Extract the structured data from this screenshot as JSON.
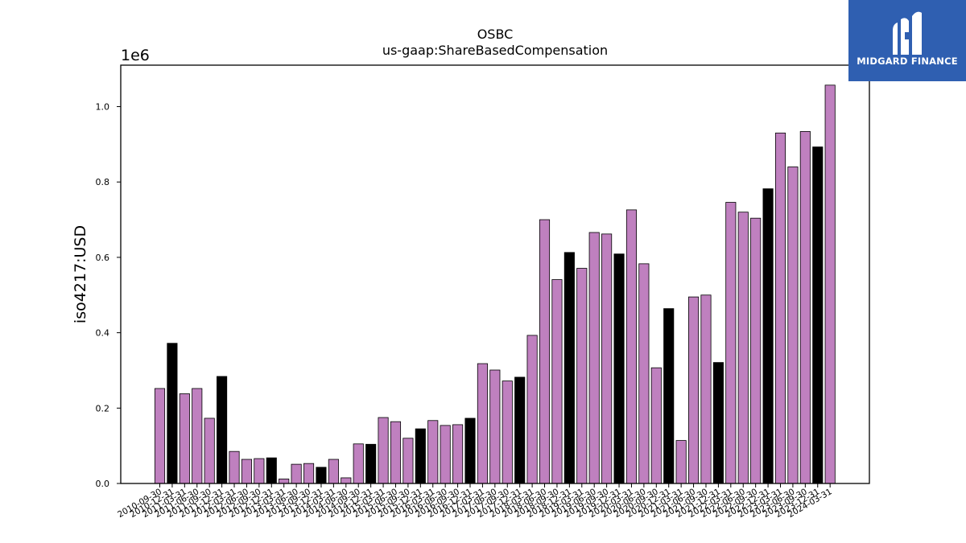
{
  "chart_data": {
    "type": "bar",
    "title": "OSBC",
    "subtitle": "us-gaap:ShareBasedCompensation",
    "ylabel": "iso4217:USD",
    "xlabel": "",
    "y_scale_label": "1e6",
    "y_scale": 1000000,
    "ylim": [
      0,
      1110000
    ],
    "yticks": [
      0,
      200000,
      400000,
      600000,
      800000,
      1000000
    ],
    "ytick_labels": [
      "0.0",
      "0.2",
      "0.4",
      "0.6",
      "0.8",
      "1.0"
    ],
    "grid": false,
    "colors": {
      "quarter": "#bf80bf",
      "annual": "#000000",
      "edge": "#000000"
    },
    "series": [
      {
        "name": "",
        "points": [
          {
            "x": "2010-09-30",
            "y": 252000,
            "kind": "quarter"
          },
          {
            "x": "2010-12-31",
            "y": 372000,
            "kind": "annual"
          },
          {
            "x": "2011-03-31",
            "y": 238000,
            "kind": "quarter"
          },
          {
            "x": "2011-06-30",
            "y": 252000,
            "kind": "quarter"
          },
          {
            "x": "2011-09-30",
            "y": 173000,
            "kind": "quarter"
          },
          {
            "x": "2011-12-31",
            "y": 284000,
            "kind": "annual"
          },
          {
            "x": "2012-03-31",
            "y": 85000,
            "kind": "quarter"
          },
          {
            "x": "2012-06-30",
            "y": 64000,
            "kind": "quarter"
          },
          {
            "x": "2012-09-30",
            "y": 66000,
            "kind": "quarter"
          },
          {
            "x": "2012-12-31",
            "y": 68000,
            "kind": "annual"
          },
          {
            "x": "2013-03-31",
            "y": 12000,
            "kind": "quarter"
          },
          {
            "x": "2013-06-30",
            "y": 51000,
            "kind": "quarter"
          },
          {
            "x": "2013-09-30",
            "y": 53000,
            "kind": "quarter"
          },
          {
            "x": "2013-12-31",
            "y": 43000,
            "kind": "annual"
          },
          {
            "x": "2014-03-31",
            "y": 64000,
            "kind": "quarter"
          },
          {
            "x": "2014-06-30",
            "y": 15000,
            "kind": "quarter"
          },
          {
            "x": "2014-09-30",
            "y": 105000,
            "kind": "quarter"
          },
          {
            "x": "2014-12-31",
            "y": 104000,
            "kind": "annual"
          },
          {
            "x": "2015-03-31",
            "y": 175000,
            "kind": "quarter"
          },
          {
            "x": "2015-06-30",
            "y": 164000,
            "kind": "quarter"
          },
          {
            "x": "2015-09-30",
            "y": 120000,
            "kind": "quarter"
          },
          {
            "x": "2015-12-31",
            "y": 145000,
            "kind": "annual"
          },
          {
            "x": "2016-03-31",
            "y": 167000,
            "kind": "quarter"
          },
          {
            "x": "2016-06-30",
            "y": 154000,
            "kind": "quarter"
          },
          {
            "x": "2016-09-30",
            "y": 156000,
            "kind": "quarter"
          },
          {
            "x": "2016-12-31",
            "y": 173000,
            "kind": "annual"
          },
          {
            "x": "2017-03-31",
            "y": 318000,
            "kind": "quarter"
          },
          {
            "x": "2017-06-30",
            "y": 301000,
            "kind": "quarter"
          },
          {
            "x": "2017-09-30",
            "y": 272000,
            "kind": "quarter"
          },
          {
            "x": "2017-12-31",
            "y": 282000,
            "kind": "annual"
          },
          {
            "x": "2018-03-31",
            "y": 393000,
            "kind": "quarter"
          },
          {
            "x": "2018-06-30",
            "y": 700000,
            "kind": "quarter"
          },
          {
            "x": "2018-09-30",
            "y": 541000,
            "kind": "quarter"
          },
          {
            "x": "2018-12-31",
            "y": 613000,
            "kind": "annual"
          },
          {
            "x": "2019-03-31",
            "y": 571000,
            "kind": "quarter"
          },
          {
            "x": "2019-06-30",
            "y": 666000,
            "kind": "quarter"
          },
          {
            "x": "2019-09-30",
            "y": 662000,
            "kind": "quarter"
          },
          {
            "x": "2019-12-31",
            "y": 609000,
            "kind": "annual"
          },
          {
            "x": "2020-03-31",
            "y": 726000,
            "kind": "quarter"
          },
          {
            "x": "2020-06-30",
            "y": 583000,
            "kind": "quarter"
          },
          {
            "x": "2020-09-30",
            "y": 307000,
            "kind": "quarter"
          },
          {
            "x": "2020-12-31",
            "y": 464000,
            "kind": "annual"
          },
          {
            "x": "2021-03-31",
            "y": 114000,
            "kind": "quarter"
          },
          {
            "x": "2021-06-30",
            "y": 495000,
            "kind": "quarter"
          },
          {
            "x": "2021-09-30",
            "y": 500000,
            "kind": "quarter"
          },
          {
            "x": "2021-12-31",
            "y": 321000,
            "kind": "annual"
          },
          {
            "x": "2022-03-31",
            "y": 746000,
            "kind": "quarter"
          },
          {
            "x": "2022-06-30",
            "y": 720000,
            "kind": "quarter"
          },
          {
            "x": "2022-09-30",
            "y": 704000,
            "kind": "quarter"
          },
          {
            "x": "2022-12-31",
            "y": 782000,
            "kind": "annual"
          },
          {
            "x": "2023-03-31",
            "y": 930000,
            "kind": "quarter"
          },
          {
            "x": "2023-06-30",
            "y": 840000,
            "kind": "quarter"
          },
          {
            "x": "2023-09-30",
            "y": 934000,
            "kind": "quarter"
          },
          {
            "x": "2023-12-31",
            "y": 893000,
            "kind": "annual"
          },
          {
            "x": "2024-03-31",
            "y": 1057000,
            "kind": "quarter"
          }
        ]
      }
    ]
  },
  "logo": {
    "text": "MIDGARD FINANCE",
    "background": "#2f5fb1",
    "icon": "midgard-monogram-icon"
  }
}
